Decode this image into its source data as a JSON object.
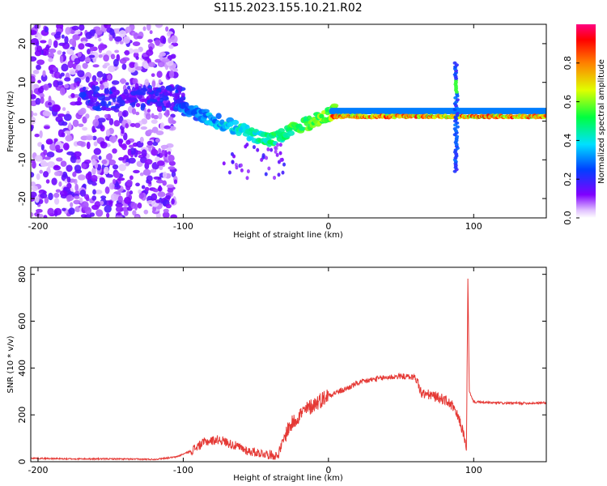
{
  "figure": {
    "title": "S115.2023.155.10.21.R02"
  },
  "chart_data": [
    {
      "type": "heatmap",
      "xlabel": "Height of straight line (km)",
      "ylabel": "Frequency (Hz)",
      "xlim": [
        -205,
        150
      ],
      "ylim": [
        -25,
        25
      ],
      "xticks": [
        -200,
        -100,
        0,
        100
      ],
      "xtick_labels": [
        "-200",
        "-100",
        "0",
        "100"
      ],
      "yticks": [
        20,
        10,
        0,
        -10,
        -20
      ],
      "ytick_labels": [
        "20",
        "10",
        "0",
        "-10",
        "-20"
      ],
      "colorbar": {
        "label": "Normalized spectral amplitude",
        "range": [
          0,
          1
        ],
        "ticks": [
          0.0,
          0.2,
          0.4,
          0.6,
          0.8
        ],
        "tick_labels": [
          "0.0",
          "0.2",
          "0.4",
          "0.6",
          "0.8"
        ],
        "colormap": "rainbow (purple-blue-cyan-green-yellow-orange-red-magenta)"
      },
      "features": [
        {
          "x_range": [
            -205,
            -105
          ],
          "freq_range": [
            -25,
            25
          ],
          "amplitude": "low (0.0-0.2), diffuse noise"
        },
        {
          "x": -140,
          "freq": 6,
          "amplitude": 0.15
        },
        {
          "x": -90,
          "freq": 4,
          "amplitude": 0.3
        },
        {
          "x": -75,
          "freq": 0,
          "amplitude": 0.35
        },
        {
          "x": -55,
          "freq": -3,
          "amplitude": 0.4
        },
        {
          "x": -40,
          "freq": -5,
          "amplitude": 0.45
        },
        {
          "x": -20,
          "freq": 0,
          "amplitude": 0.55
        },
        {
          "x": 0,
          "freq": 2,
          "amplitude": 0.6
        },
        {
          "x_range": [
            0,
            150
          ],
          "freq": 1,
          "amplitude": "high (0.8-1.0), narrow line"
        },
        {
          "x": 88,
          "freq_range": [
            -13,
            15
          ],
          "amplitude": "vertical streak 0.2-0.4"
        }
      ]
    },
    {
      "type": "line",
      "xlabel": "Height of straight line (km)",
      "ylabel": "SNR (10 * v/v)",
      "xlim": [
        -205,
        150
      ],
      "ylim": [
        0,
        830
      ],
      "xticks": [
        -200,
        -100,
        0,
        100
      ],
      "xtick_labels": [
        "-200",
        "-100",
        "0",
        "100"
      ],
      "yticks": [
        0,
        200,
        400,
        600,
        800
      ],
      "ytick_labels": [
        "0",
        "200",
        "400",
        "600",
        "800"
      ],
      "color": "#e53935",
      "series": [
        {
          "x": [
            -205,
            -180,
            -150,
            -120,
            -105,
            -95,
            -85,
            -75,
            -65,
            -55,
            -45,
            -35,
            -28,
            -20,
            -10,
            0,
            10,
            20,
            30,
            40,
            50,
            60,
            62,
            64,
            70,
            80,
            85,
            90,
            93,
            95,
            96,
            97,
            100,
            110,
            120,
            130,
            140,
            150
          ],
          "values": [
            15,
            12,
            12,
            10,
            20,
            45,
            85,
            95,
            70,
            45,
            35,
            25,
            140,
            200,
            245,
            285,
            305,
            335,
            350,
            360,
            365,
            360,
            330,
            290,
            285,
            265,
            240,
            180,
            120,
            50,
            780,
            300,
            255,
            252,
            250,
            250,
            250,
            252
          ]
        }
      ]
    }
  ]
}
